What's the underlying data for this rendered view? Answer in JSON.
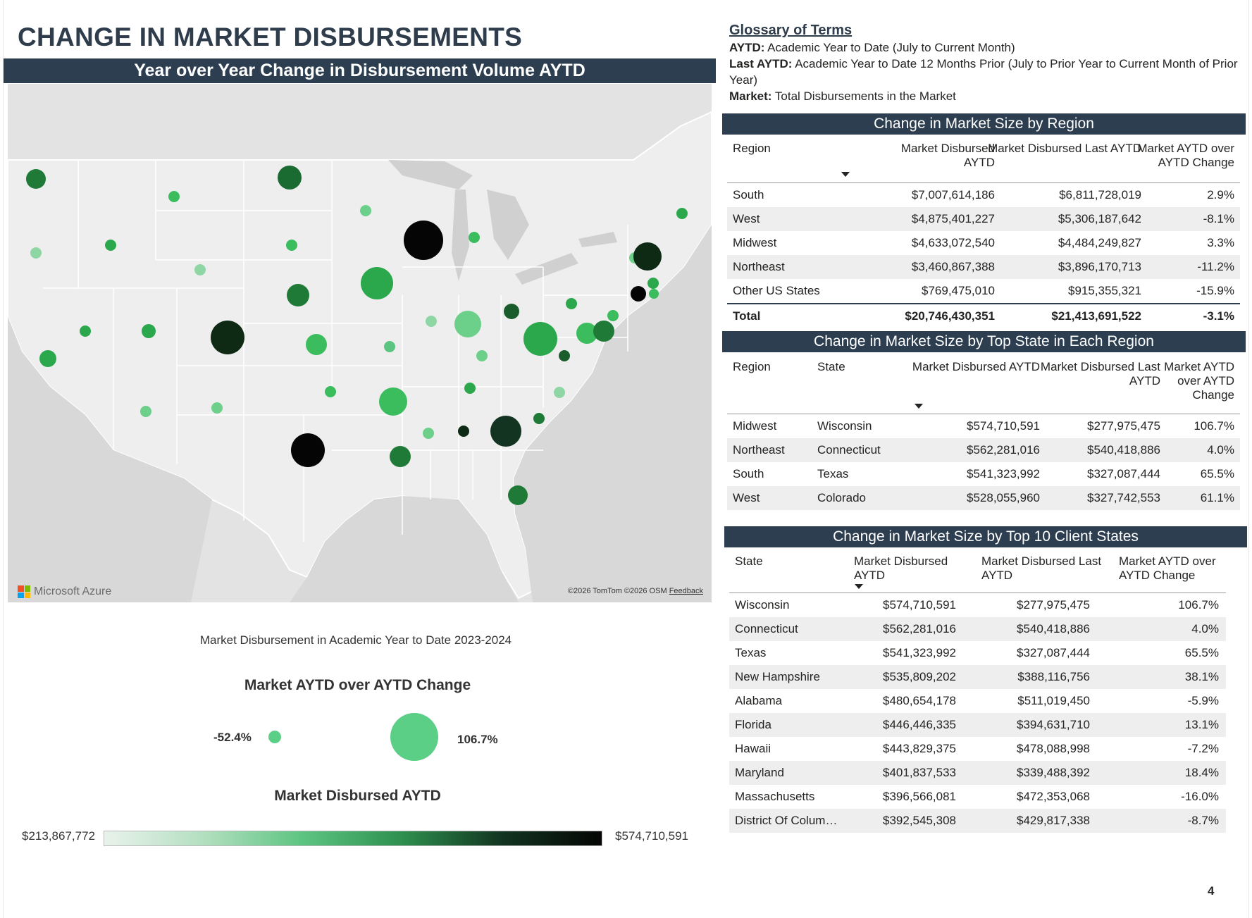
{
  "page": {
    "title": "CHANGE IN MARKET DISBURSEMENTS",
    "page_number": "4"
  },
  "map": {
    "header": "Year over Year Change in Disbursement Volume AYTD",
    "logo_text": "Microsoft Azure",
    "credit": "©2026 TomTom  ©2026 OSM",
    "feedback": "Feedback"
  },
  "legend": {
    "subtitle": "Market Disbursement in Academic Year to Date 2023-2024",
    "size_title": "Market AYTD over AYTD Change",
    "size_min": "-52.4%",
    "size_max": "106.7%",
    "color_title": "Market Disbursed AYTD",
    "color_min": "$213,867,772",
    "color_max": "$574,710,591",
    "colors": {
      "low": "#e9f2ec",
      "mid": "#5cc481",
      "high": "#050505"
    }
  },
  "glossary": {
    "title": "Glossary of Terms",
    "aytd_term": "AYTD:",
    "aytd_def": " Academic Year to Date (July to Current Month)",
    "last_term": "Last AYTD:",
    "last_def": " Academic Year to Date 12 Months Prior (July to Prior Year to Current Month of Prior Year)",
    "market_term": "Market:",
    "market_def": " Total Disbursements in the Market"
  },
  "region_table": {
    "title": "Change in Market Size by Region",
    "columns": [
      "Region",
      "Market Disbursed AYTD",
      "Market Disbursed Last AYTD",
      "Market AYTD over AYTD Change"
    ],
    "rows": [
      [
        "South",
        "$7,007,614,186",
        "$6,811,728,019",
        "2.9%"
      ],
      [
        "West",
        "$4,875,401,227",
        "$5,306,187,642",
        "-8.1%"
      ],
      [
        "Midwest",
        "$4,633,072,540",
        "$4,484,249,827",
        "3.3%"
      ],
      [
        "Northeast",
        "$3,460,867,388",
        "$3,896,170,713",
        "-11.2%"
      ],
      [
        "Other US States",
        "$769,475,010",
        "$915,355,321",
        "-15.9%"
      ]
    ],
    "total": [
      "Total",
      "$20,746,430,351",
      "$21,413,691,522",
      "-3.1%"
    ]
  },
  "top_state_table": {
    "title": "Change in Market Size by Top State in Each Region",
    "columns": [
      "Region",
      "State",
      "Market Disbursed AYTD",
      "Market Disbursed Last AYTD",
      "Market AYTD over AYTD Change"
    ],
    "rows": [
      [
        "Midwest",
        "Wisconsin",
        "$574,710,591",
        "$277,975,475",
        "106.7%"
      ],
      [
        "Northeast",
        "Connecticut",
        "$562,281,016",
        "$540,418,886",
        "4.0%"
      ],
      [
        "South",
        "Texas",
        "$541,323,992",
        "$327,087,444",
        "65.5%"
      ],
      [
        "West",
        "Colorado",
        "$528,055,960",
        "$327,742,553",
        "61.1%"
      ]
    ]
  },
  "top10_table": {
    "title": "Change in Market Size by Top 10 Client States",
    "columns": [
      "State",
      "Market Disbursed AYTD",
      "Market Disbursed Last AYTD",
      "Market AYTD over AYTD Change"
    ],
    "rows": [
      [
        "Wisconsin",
        "$574,710,591",
        "$277,975,475",
        "106.7%"
      ],
      [
        "Connecticut",
        "$562,281,016",
        "$540,418,886",
        "4.0%"
      ],
      [
        "Texas",
        "$541,323,992",
        "$327,087,444",
        "65.5%"
      ],
      [
        "New Hampshire",
        "$535,809,202",
        "$388,116,756",
        "38.1%"
      ],
      [
        "Alabama",
        "$480,654,178",
        "$511,019,450",
        "-5.9%"
      ],
      [
        "Florida",
        "$446,446,335",
        "$394,631,710",
        "13.1%"
      ],
      [
        "Hawaii",
        "$443,829,375",
        "$478,088,998",
        "-7.2%"
      ],
      [
        "Maryland",
        "$401,837,533",
        "$339,488,392",
        "18.4%"
      ],
      [
        "Massachusetts",
        "$396,566,081",
        "$472,353,068",
        "-16.0%"
      ],
      [
        "District Of Colum…",
        "$392,545,308",
        "$429,817,338",
        "-8.7%"
      ]
    ]
  }
}
